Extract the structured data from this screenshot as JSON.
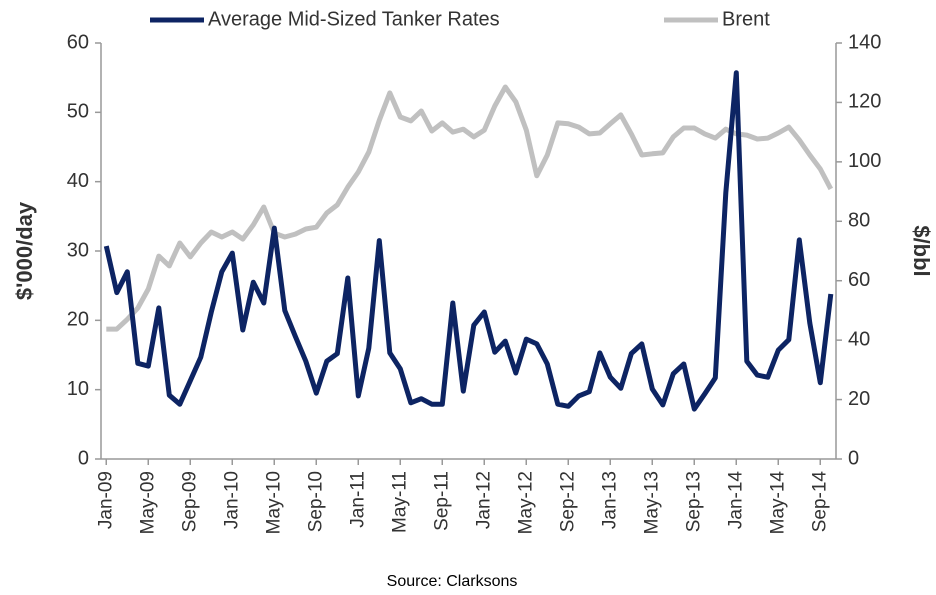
{
  "chart_data": {
    "type": "line",
    "y_label": "$'000/day",
    "y2_label": "$/bbl",
    "source": "Source: Clarksons",
    "legend": "top",
    "categories": [
      "Jan-09",
      null,
      null,
      null,
      "May-09",
      null,
      null,
      null,
      "Sep-09",
      null,
      null,
      null,
      "Jan-10",
      null,
      null,
      null,
      "May-10",
      null,
      null,
      null,
      "Sep-10",
      null,
      null,
      null,
      "Jan-11",
      null,
      null,
      null,
      "May-11",
      null,
      null,
      null,
      "Sep-11",
      null,
      null,
      null,
      "Jan-12",
      null,
      null,
      null,
      "May-12",
      null,
      null,
      null,
      "Sep-12",
      null,
      null,
      null,
      "Jan-13",
      null,
      null,
      null,
      "May-13",
      null,
      null,
      null,
      "Sep-13",
      null,
      null,
      null,
      "Jan-14",
      null,
      null,
      null,
      "May-14",
      null,
      null,
      null,
      "Sep-14",
      null
    ],
    "series": [
      {
        "name": "Average Mid-Sized Tanker Rates",
        "color": "#0d2463",
        "axis": "y",
        "values": [
          30.7,
          24,
          27,
          13.8,
          13.4,
          21.8,
          9.2,
          7.9,
          11.3,
          14.7,
          21.2,
          27,
          29.7,
          18.6,
          25.5,
          22.5,
          33.3,
          21.4,
          17.7,
          14.1,
          9.5,
          14.1,
          15.2,
          26.1,
          9.1,
          16,
          31.5,
          15.3,
          13,
          8.1,
          8.7,
          7.9,
          7.9,
          22.5,
          9.8,
          19.3,
          21.2,
          15.4,
          17,
          12.4,
          17.3,
          16.6,
          13.7,
          7.9,
          7.6,
          9.1,
          9.7,
          15.3,
          11.8,
          10.2,
          15.2,
          16.6,
          10.1,
          7.8,
          12.3,
          13.7,
          7.2,
          9.4,
          11.7,
          38.4,
          55.7,
          14.1,
          12.1,
          11.8,
          15.7,
          17.2,
          31.6,
          19.6,
          11,
          23.8
        ]
      },
      {
        "name": "Brent",
        "color": "#c0c0c0",
        "axis": "y2",
        "values": [
          43.7,
          43.7,
          47,
          50.8,
          57.2,
          68.3,
          65,
          72.7,
          68,
          72.7,
          76.4,
          74.7,
          76.4,
          74,
          78.8,
          84.8,
          76,
          74.7,
          75.7,
          77.4,
          78,
          82.8,
          85.5,
          91.5,
          96.6,
          103.3,
          114,
          123.2,
          115.1,
          113.8,
          117.1,
          110.4,
          113.1,
          110,
          111,
          108.4,
          110.7,
          118.8,
          125.2,
          120.2,
          110.7,
          95.3,
          102.3,
          113.1,
          112.8,
          111.7,
          109.4,
          109.7,
          112.8,
          115.8,
          109.4,
          102.3,
          102.7,
          103,
          108.4,
          111.4,
          111.4,
          109.4,
          108,
          111,
          109.4,
          109,
          107.7,
          108,
          109.7,
          111.7,
          107.4,
          102.3,
          97.6,
          90.9
        ]
      }
    ],
    "ylim": [
      0,
      60
    ],
    "yticks": [
      0,
      10,
      20,
      30,
      40,
      50,
      60
    ],
    "y2lim": [
      0,
      140
    ],
    "y2ticks": [
      0,
      20,
      40,
      60,
      80,
      100,
      120,
      140
    ],
    "grid": false
  }
}
